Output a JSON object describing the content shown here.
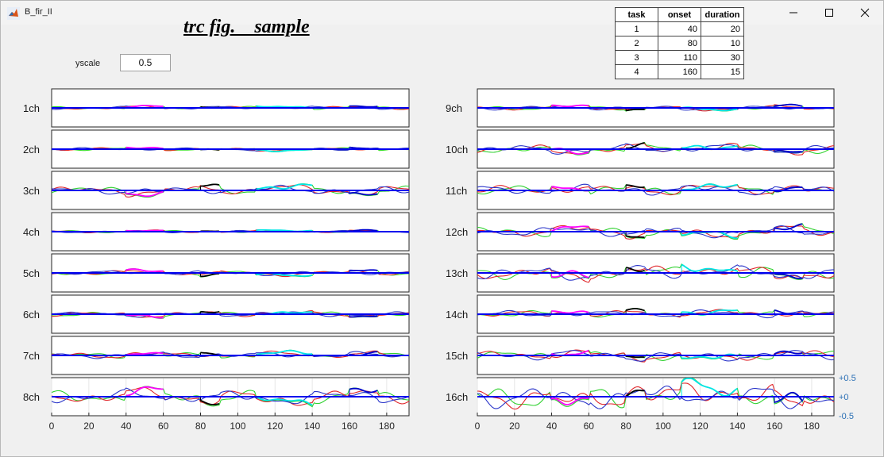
{
  "window": {
    "title": "B_fir_II"
  },
  "figure_title": "trc fig.　sample",
  "yscale": {
    "label": "yscale",
    "value": "0.5"
  },
  "task_table": {
    "headers": [
      "task",
      "onset",
      "duration"
    ],
    "rows": [
      [
        "1",
        "40",
        "20"
      ],
      [
        "2",
        "80",
        "10"
      ],
      [
        "3",
        "110",
        "30"
      ],
      [
        "4",
        "160",
        "15"
      ]
    ]
  },
  "chart_data": {
    "type": "line",
    "panels_left": [
      "1ch",
      "2ch",
      "3ch",
      "4ch",
      "5ch",
      "6ch",
      "7ch",
      "8ch"
    ],
    "panels_right": [
      "9ch",
      "10ch",
      "11ch",
      "12ch",
      "13ch",
      "14ch",
      "15ch",
      "16ch"
    ],
    "xlim": [
      0,
      192
    ],
    "x_ticks": [
      0,
      20,
      40,
      60,
      80,
      100,
      120,
      140,
      160,
      180
    ],
    "x_tick_labels": [
      "0",
      "20",
      "40",
      "60",
      "80",
      "100",
      "120",
      "140",
      "160",
      "180"
    ],
    "y_ticks_labels": [
      "+0.5",
      "+0",
      "-0.5"
    ],
    "ylim": [
      -0.5,
      0.5
    ],
    "series_colors": {
      "red": "#e0262a",
      "green": "#31d131",
      "blue_trace": "#2a35c9",
      "baseline": "#0000ee",
      "task1": "#ff00ff",
      "task2": "#000000",
      "task3": "#00e5e5",
      "task4": "#0000cc"
    },
    "amplitude": {
      "1ch": 0.13,
      "2ch": 0.13,
      "3ch": 0.35,
      "4ch": 0.1,
      "5ch": 0.2,
      "6ch": 0.2,
      "7ch": 0.25,
      "8ch": 0.55,
      "9ch": 0.18,
      "10ch": 0.35,
      "11ch": 0.4,
      "12ch": 0.4,
      "13ch": 0.55,
      "14ch": 0.3,
      "15ch": 0.4,
      "16ch": 1.0
    }
  }
}
